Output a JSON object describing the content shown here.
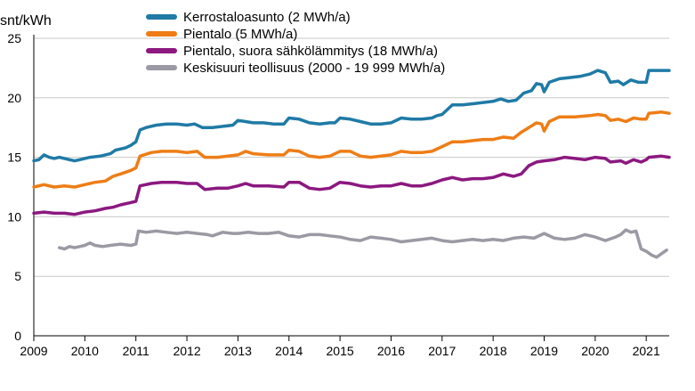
{
  "chart_data": {
    "type": "line",
    "title": "",
    "ylabel": "snt/kWh",
    "xlabel": "",
    "xlim": [
      2009,
      2021.45
    ],
    "ylim": [
      0,
      25
    ],
    "y_ticks": [
      0,
      5,
      10,
      15,
      20,
      25
    ],
    "x_ticks": [
      2009,
      2010,
      2011,
      2012,
      2013,
      2014,
      2015,
      2016,
      2017,
      2018,
      2019,
      2020,
      2021
    ],
    "grid": "horizontal",
    "legend_position": "top",
    "series": [
      {
        "name": "Kerrostaloasunto (2 MWh/a)",
        "color": "#1f7aa6",
        "points": [
          [
            2009.0,
            14.7
          ],
          [
            2009.1,
            14.8
          ],
          [
            2009.2,
            15.2
          ],
          [
            2009.3,
            15.0
          ],
          [
            2009.4,
            14.9
          ],
          [
            2009.5,
            15.0
          ],
          [
            2009.6,
            14.9
          ],
          [
            2009.7,
            14.8
          ],
          [
            2009.8,
            14.7
          ],
          [
            2009.9,
            14.8
          ],
          [
            2010.0,
            14.9
          ],
          [
            2010.1,
            15.0
          ],
          [
            2010.3,
            15.1
          ],
          [
            2010.5,
            15.3
          ],
          [
            2010.6,
            15.6
          ],
          [
            2010.8,
            15.8
          ],
          [
            2010.9,
            16.0
          ],
          [
            2011.0,
            16.3
          ],
          [
            2011.08,
            17.3
          ],
          [
            2011.2,
            17.5
          ],
          [
            2011.4,
            17.7
          ],
          [
            2011.6,
            17.8
          ],
          [
            2011.8,
            17.8
          ],
          [
            2012.0,
            17.7
          ],
          [
            2012.15,
            17.8
          ],
          [
            2012.3,
            17.5
          ],
          [
            2012.5,
            17.5
          ],
          [
            2012.7,
            17.6
          ],
          [
            2012.9,
            17.7
          ],
          [
            2013.0,
            18.1
          ],
          [
            2013.15,
            18.0
          ],
          [
            2013.3,
            17.9
          ],
          [
            2013.5,
            17.9
          ],
          [
            2013.7,
            17.8
          ],
          [
            2013.9,
            17.8
          ],
          [
            2014.0,
            18.3
          ],
          [
            2014.2,
            18.2
          ],
          [
            2014.4,
            17.9
          ],
          [
            2014.6,
            17.8
          ],
          [
            2014.8,
            17.9
          ],
          [
            2014.9,
            17.9
          ],
          [
            2015.0,
            18.3
          ],
          [
            2015.2,
            18.2
          ],
          [
            2015.4,
            18.0
          ],
          [
            2015.6,
            17.8
          ],
          [
            2015.8,
            17.8
          ],
          [
            2016.0,
            17.9
          ],
          [
            2016.2,
            18.3
          ],
          [
            2016.4,
            18.2
          ],
          [
            2016.6,
            18.2
          ],
          [
            2016.8,
            18.3
          ],
          [
            2016.9,
            18.5
          ],
          [
            2017.0,
            18.6
          ],
          [
            2017.2,
            19.4
          ],
          [
            2017.4,
            19.4
          ],
          [
            2017.6,
            19.5
          ],
          [
            2017.8,
            19.6
          ],
          [
            2018.0,
            19.7
          ],
          [
            2018.15,
            19.9
          ],
          [
            2018.3,
            19.7
          ],
          [
            2018.45,
            19.8
          ],
          [
            2018.6,
            20.4
          ],
          [
            2018.75,
            20.6
          ],
          [
            2018.85,
            21.2
          ],
          [
            2018.95,
            21.1
          ],
          [
            2019.0,
            20.5
          ],
          [
            2019.1,
            21.3
          ],
          [
            2019.3,
            21.6
          ],
          [
            2019.5,
            21.7
          ],
          [
            2019.7,
            21.8
          ],
          [
            2019.9,
            22.0
          ],
          [
            2020.05,
            22.3
          ],
          [
            2020.2,
            22.1
          ],
          [
            2020.3,
            21.3
          ],
          [
            2020.45,
            21.4
          ],
          [
            2020.55,
            21.1
          ],
          [
            2020.7,
            21.5
          ],
          [
            2020.85,
            21.3
          ],
          [
            2021.0,
            21.3
          ],
          [
            2021.05,
            22.3
          ],
          [
            2021.2,
            22.3
          ],
          [
            2021.45,
            22.3
          ]
        ]
      },
      {
        "name": "Pientalo (5 MWh/a)",
        "color": "#ee7d16",
        "points": [
          [
            2009.0,
            12.5
          ],
          [
            2009.2,
            12.7
          ],
          [
            2009.4,
            12.5
          ],
          [
            2009.6,
            12.6
          ],
          [
            2009.8,
            12.5
          ],
          [
            2010.0,
            12.7
          ],
          [
            2010.2,
            12.9
          ],
          [
            2010.4,
            13.0
          ],
          [
            2010.55,
            13.4
          ],
          [
            2010.7,
            13.6
          ],
          [
            2010.9,
            13.9
          ],
          [
            2011.0,
            14.1
          ],
          [
            2011.08,
            15.1
          ],
          [
            2011.3,
            15.4
          ],
          [
            2011.5,
            15.5
          ],
          [
            2011.8,
            15.5
          ],
          [
            2012.0,
            15.4
          ],
          [
            2012.2,
            15.5
          ],
          [
            2012.35,
            15.0
          ],
          [
            2012.6,
            15.0
          ],
          [
            2012.8,
            15.1
          ],
          [
            2013.0,
            15.2
          ],
          [
            2013.15,
            15.5
          ],
          [
            2013.3,
            15.3
          ],
          [
            2013.6,
            15.2
          ],
          [
            2013.9,
            15.2
          ],
          [
            2014.0,
            15.6
          ],
          [
            2014.2,
            15.5
          ],
          [
            2014.4,
            15.1
          ],
          [
            2014.6,
            15.0
          ],
          [
            2014.8,
            15.1
          ],
          [
            2015.0,
            15.5
          ],
          [
            2015.2,
            15.5
          ],
          [
            2015.4,
            15.1
          ],
          [
            2015.6,
            15.0
          ],
          [
            2015.8,
            15.1
          ],
          [
            2016.0,
            15.2
          ],
          [
            2016.2,
            15.5
          ],
          [
            2016.4,
            15.4
          ],
          [
            2016.6,
            15.4
          ],
          [
            2016.8,
            15.5
          ],
          [
            2017.0,
            15.9
          ],
          [
            2017.2,
            16.3
          ],
          [
            2017.4,
            16.3
          ],
          [
            2017.6,
            16.4
          ],
          [
            2017.8,
            16.5
          ],
          [
            2018.0,
            16.5
          ],
          [
            2018.2,
            16.7
          ],
          [
            2018.4,
            16.6
          ],
          [
            2018.55,
            17.1
          ],
          [
            2018.7,
            17.5
          ],
          [
            2018.85,
            17.9
          ],
          [
            2018.95,
            17.8
          ],
          [
            2019.0,
            17.2
          ],
          [
            2019.1,
            18.0
          ],
          [
            2019.3,
            18.4
          ],
          [
            2019.6,
            18.4
          ],
          [
            2019.9,
            18.5
          ],
          [
            2020.05,
            18.6
          ],
          [
            2020.2,
            18.5
          ],
          [
            2020.3,
            18.1
          ],
          [
            2020.45,
            18.2
          ],
          [
            2020.6,
            18.0
          ],
          [
            2020.75,
            18.3
          ],
          [
            2020.9,
            18.2
          ],
          [
            2021.0,
            18.2
          ],
          [
            2021.05,
            18.7
          ],
          [
            2021.3,
            18.8
          ],
          [
            2021.45,
            18.7
          ]
        ]
      },
      {
        "name": "Pientalo, suora sähkölämmitys (18 MWh/a)",
        "color": "#8c1880",
        "points": [
          [
            2009.0,
            10.3
          ],
          [
            2009.2,
            10.4
          ],
          [
            2009.4,
            10.3
          ],
          [
            2009.6,
            10.3
          ],
          [
            2009.8,
            10.2
          ],
          [
            2010.0,
            10.4
          ],
          [
            2010.2,
            10.5
          ],
          [
            2010.4,
            10.7
          ],
          [
            2010.55,
            10.8
          ],
          [
            2010.7,
            11.0
          ],
          [
            2010.9,
            11.2
          ],
          [
            2011.0,
            11.3
          ],
          [
            2011.08,
            12.6
          ],
          [
            2011.3,
            12.8
          ],
          [
            2011.5,
            12.9
          ],
          [
            2011.8,
            12.9
          ],
          [
            2012.0,
            12.8
          ],
          [
            2012.2,
            12.8
          ],
          [
            2012.35,
            12.3
          ],
          [
            2012.6,
            12.4
          ],
          [
            2012.8,
            12.4
          ],
          [
            2013.0,
            12.6
          ],
          [
            2013.15,
            12.8
          ],
          [
            2013.3,
            12.6
          ],
          [
            2013.6,
            12.6
          ],
          [
            2013.9,
            12.5
          ],
          [
            2014.0,
            12.9
          ],
          [
            2014.2,
            12.9
          ],
          [
            2014.4,
            12.4
          ],
          [
            2014.6,
            12.3
          ],
          [
            2014.8,
            12.4
          ],
          [
            2015.0,
            12.9
          ],
          [
            2015.2,
            12.8
          ],
          [
            2015.4,
            12.6
          ],
          [
            2015.6,
            12.5
          ],
          [
            2015.8,
            12.6
          ],
          [
            2016.0,
            12.6
          ],
          [
            2016.2,
            12.8
          ],
          [
            2016.4,
            12.6
          ],
          [
            2016.6,
            12.6
          ],
          [
            2016.8,
            12.8
          ],
          [
            2017.0,
            13.1
          ],
          [
            2017.2,
            13.3
          ],
          [
            2017.4,
            13.1
          ],
          [
            2017.6,
            13.2
          ],
          [
            2017.8,
            13.2
          ],
          [
            2018.0,
            13.3
          ],
          [
            2018.2,
            13.6
          ],
          [
            2018.4,
            13.4
          ],
          [
            2018.55,
            13.6
          ],
          [
            2018.7,
            14.3
          ],
          [
            2018.85,
            14.6
          ],
          [
            2019.0,
            14.7
          ],
          [
            2019.2,
            14.8
          ],
          [
            2019.4,
            15.0
          ],
          [
            2019.6,
            14.9
          ],
          [
            2019.8,
            14.8
          ],
          [
            2020.0,
            15.0
          ],
          [
            2020.2,
            14.9
          ],
          [
            2020.3,
            14.6
          ],
          [
            2020.5,
            14.7
          ],
          [
            2020.6,
            14.5
          ],
          [
            2020.75,
            14.8
          ],
          [
            2020.9,
            14.6
          ],
          [
            2021.0,
            14.8
          ],
          [
            2021.05,
            15.0
          ],
          [
            2021.3,
            15.1
          ],
          [
            2021.45,
            15.0
          ]
        ]
      },
      {
        "name": "Keskisuuri teollisuus (2000 - 19 999 MWh/a)",
        "color": "#9b99a3",
        "points": [
          [
            2009.5,
            7.4
          ],
          [
            2009.6,
            7.3
          ],
          [
            2009.7,
            7.5
          ],
          [
            2009.8,
            7.4
          ],
          [
            2009.9,
            7.5
          ],
          [
            2010.0,
            7.6
          ],
          [
            2010.1,
            7.8
          ],
          [
            2010.2,
            7.6
          ],
          [
            2010.35,
            7.5
          ],
          [
            2010.5,
            7.6
          ],
          [
            2010.7,
            7.7
          ],
          [
            2010.9,
            7.6
          ],
          [
            2011.0,
            7.7
          ],
          [
            2011.05,
            8.8
          ],
          [
            2011.2,
            8.7
          ],
          [
            2011.4,
            8.8
          ],
          [
            2011.6,
            8.7
          ],
          [
            2011.8,
            8.6
          ],
          [
            2012.0,
            8.7
          ],
          [
            2012.2,
            8.6
          ],
          [
            2012.4,
            8.5
          ],
          [
            2012.5,
            8.4
          ],
          [
            2012.7,
            8.7
          ],
          [
            2012.9,
            8.6
          ],
          [
            2013.0,
            8.6
          ],
          [
            2013.2,
            8.7
          ],
          [
            2013.4,
            8.6
          ],
          [
            2013.6,
            8.6
          ],
          [
            2013.8,
            8.7
          ],
          [
            2014.0,
            8.4
          ],
          [
            2014.2,
            8.3
          ],
          [
            2014.4,
            8.5
          ],
          [
            2014.6,
            8.5
          ],
          [
            2014.8,
            8.4
          ],
          [
            2015.0,
            8.3
          ],
          [
            2015.2,
            8.1
          ],
          [
            2015.4,
            8.0
          ],
          [
            2015.6,
            8.3
          ],
          [
            2015.8,
            8.2
          ],
          [
            2016.0,
            8.1
          ],
          [
            2016.2,
            7.9
          ],
          [
            2016.4,
            8.0
          ],
          [
            2016.6,
            8.1
          ],
          [
            2016.8,
            8.2
          ],
          [
            2017.0,
            8.0
          ],
          [
            2017.2,
            7.9
          ],
          [
            2017.4,
            8.0
          ],
          [
            2017.6,
            8.1
          ],
          [
            2017.8,
            8.0
          ],
          [
            2018.0,
            8.1
          ],
          [
            2018.2,
            8.0
          ],
          [
            2018.4,
            8.2
          ],
          [
            2018.6,
            8.3
          ],
          [
            2018.8,
            8.2
          ],
          [
            2019.0,
            8.6
          ],
          [
            2019.2,
            8.2
          ],
          [
            2019.4,
            8.1
          ],
          [
            2019.6,
            8.2
          ],
          [
            2019.8,
            8.5
          ],
          [
            2020.0,
            8.3
          ],
          [
            2020.2,
            8.0
          ],
          [
            2020.4,
            8.3
          ],
          [
            2020.5,
            8.5
          ],
          [
            2020.6,
            8.9
          ],
          [
            2020.7,
            8.7
          ],
          [
            2020.8,
            8.8
          ],
          [
            2020.9,
            7.3
          ],
          [
            2021.0,
            7.1
          ],
          [
            2021.1,
            6.8
          ],
          [
            2021.2,
            6.6
          ],
          [
            2021.3,
            6.9
          ],
          [
            2021.4,
            7.2
          ]
        ]
      }
    ]
  }
}
